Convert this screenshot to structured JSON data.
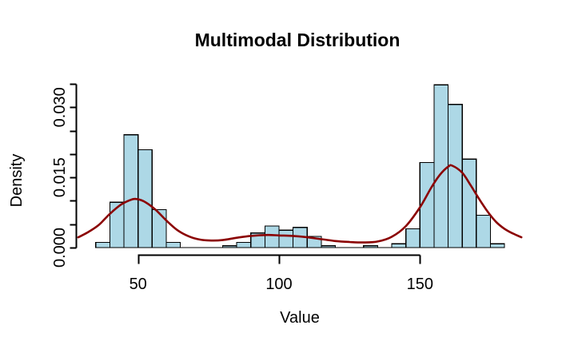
{
  "figure": {
    "title": "Multimodal Distribution",
    "xlabel": "Value",
    "ylabel": "Density"
  },
  "chart_data": {
    "type": "bar",
    "subtype": "histogram-with-density-curve",
    "title": "Multimodal Distribution",
    "xlabel": "Value",
    "ylabel": "Density",
    "xlim": [
      28.8,
      186.2
    ],
    "ylim": [
      0,
      0.035
    ],
    "grid": false,
    "x_ticks": [
      {
        "value": 50,
        "label": "50"
      },
      {
        "value": 100,
        "label": "100"
      },
      {
        "value": 150,
        "label": "150"
      }
    ],
    "y_tick_step": 0.005,
    "y_ticks_labeled": [
      {
        "value": 0.0,
        "label": "0.000"
      },
      {
        "value": 0.015,
        "label": "0.015"
      },
      {
        "value": 0.03,
        "label": "0.030"
      }
    ],
    "bin_width": 5,
    "histogram_bins": [
      {
        "x0": 35,
        "density": 0.0011
      },
      {
        "x0": 40,
        "density": 0.0097
      },
      {
        "x0": 45,
        "density": 0.0241
      },
      {
        "x0": 50,
        "density": 0.0209
      },
      {
        "x0": 55,
        "density": 0.0081
      },
      {
        "x0": 60,
        "density": 0.0011
      },
      {
        "x0": 65,
        "density": 0
      },
      {
        "x0": 70,
        "density": 0
      },
      {
        "x0": 75,
        "density": 0
      },
      {
        "x0": 80,
        "density": 0.0004
      },
      {
        "x0": 85,
        "density": 0.0011
      },
      {
        "x0": 90,
        "density": 0.0031
      },
      {
        "x0": 95,
        "density": 0.0046
      },
      {
        "x0": 100,
        "density": 0.0037
      },
      {
        "x0": 105,
        "density": 0.0043
      },
      {
        "x0": 110,
        "density": 0.0024
      },
      {
        "x0": 115,
        "density": 0.0004
      },
      {
        "x0": 120,
        "density": 0
      },
      {
        "x0": 125,
        "density": 0
      },
      {
        "x0": 130,
        "density": 0.0004
      },
      {
        "x0": 135,
        "density": 0
      },
      {
        "x0": 140,
        "density": 0.0008
      },
      {
        "x0": 145,
        "density": 0.004
      },
      {
        "x0": 150,
        "density": 0.0182
      },
      {
        "x0": 155,
        "density": 0.0348
      },
      {
        "x0": 160,
        "density": 0.0306
      },
      {
        "x0": 165,
        "density": 0.0189
      },
      {
        "x0": 170,
        "density": 0.0069
      },
      {
        "x0": 175,
        "density": 0.0008
      }
    ],
    "density_curve": {
      "points": [
        [
          28.8,
          0.0022
        ],
        [
          32,
          0.0032
        ],
        [
          36,
          0.0048
        ],
        [
          40,
          0.0072
        ],
        [
          44,
          0.0092
        ],
        [
          47,
          0.0101
        ],
        [
          49,
          0.0104
        ],
        [
          52,
          0.0099
        ],
        [
          56,
          0.0082
        ],
        [
          60,
          0.0058
        ],
        [
          64,
          0.0037
        ],
        [
          68,
          0.0024
        ],
        [
          72,
          0.0017
        ],
        [
          76,
          0.0015
        ],
        [
          80,
          0.0016
        ],
        [
          85,
          0.0021
        ],
        [
          90,
          0.0025
        ],
        [
          96,
          0.0027
        ],
        [
          100,
          0.0026
        ],
        [
          105,
          0.0025
        ],
        [
          110,
          0.0022
        ],
        [
          115,
          0.0018
        ],
        [
          120,
          0.0014
        ],
        [
          125,
          0.0012
        ],
        [
          130,
          0.0011
        ],
        [
          135,
          0.0013
        ],
        [
          140,
          0.0023
        ],
        [
          145,
          0.0046
        ],
        [
          150,
          0.0086
        ],
        [
          154,
          0.0128
        ],
        [
          157,
          0.0155
        ],
        [
          160,
          0.0173
        ],
        [
          161.5,
          0.0175
        ],
        [
          165,
          0.016
        ],
        [
          168,
          0.0133
        ],
        [
          171,
          0.0104
        ],
        [
          174,
          0.0077
        ],
        [
          177,
          0.0055
        ],
        [
          180,
          0.004
        ],
        [
          183,
          0.003
        ],
        [
          186,
          0.0022
        ]
      ]
    },
    "colors": {
      "background": "#FFFFFF",
      "bar_fill": "#ADD8E6",
      "bar_border": "#000000",
      "curve": "#8B0000",
      "axis": "#000000",
      "text": "#000000"
    }
  }
}
